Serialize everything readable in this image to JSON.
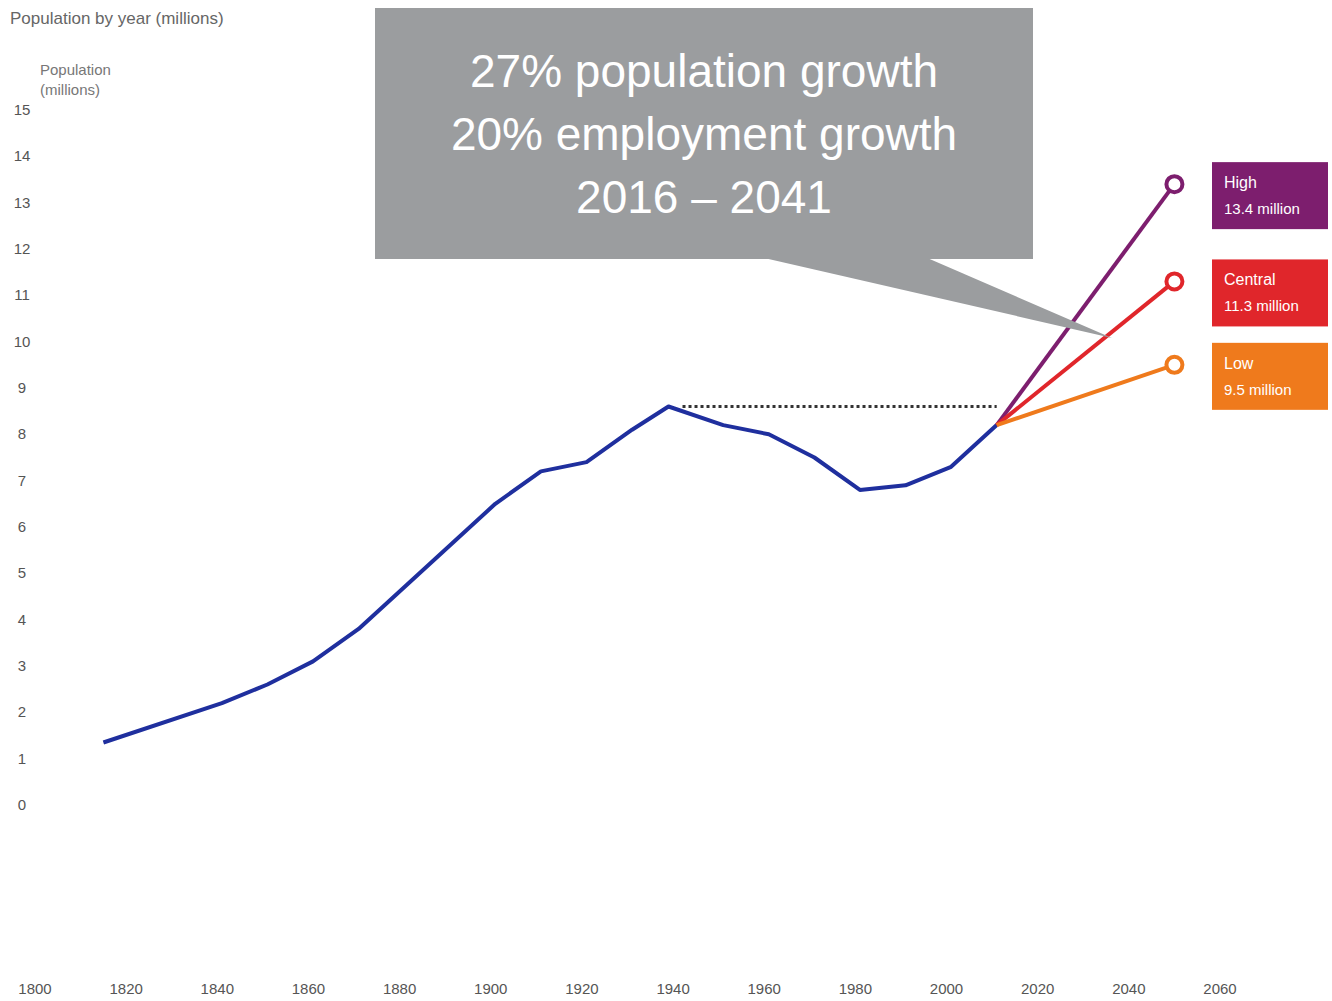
{
  "chart_data": {
    "type": "line",
    "title": "Population by year (millions)",
    "y_label": "Population (millions)",
    "x": [
      1815,
      1841,
      1851,
      1861,
      1871,
      1881,
      1891,
      1901,
      1911,
      1921,
      1931,
      1939,
      1951,
      1961,
      1971,
      1981,
      1991,
      2001,
      2011,
      2050
    ],
    "series": [
      {
        "color": "#1f2f9e",
        "values": [
          1.35,
          2.2,
          2.6,
          3.1,
          3.8,
          4.7,
          5.6,
          6.5,
          7.2,
          7.4,
          8.1,
          8.6,
          8.2,
          8.0,
          7.5,
          6.8,
          6.9,
          7.3,
          8.2,
          null
        ]
      },
      {
        "name": "High",
        "color": "#7d1e6e",
        "marker": "circle",
        "end_label": "13.4 million",
        "values": [
          null,
          null,
          null,
          null,
          null,
          null,
          null,
          null,
          null,
          null,
          null,
          null,
          null,
          null,
          null,
          null,
          null,
          null,
          8.2,
          13.4
        ]
      },
      {
        "name": "Central",
        "color": "#e0262b",
        "marker": "circle",
        "end_label": "11.3 million",
        "values": [
          null,
          null,
          null,
          null,
          null,
          null,
          null,
          null,
          null,
          null,
          null,
          null,
          null,
          null,
          null,
          null,
          null,
          null,
          8.2,
          11.3
        ]
      },
      {
        "name": "Low",
        "color": "#ef7a1c",
        "marker": "circle",
        "end_label": "9.5 million",
        "values": [
          null,
          null,
          null,
          null,
          null,
          null,
          null,
          null,
          null,
          null,
          null,
          null,
          null,
          null,
          null,
          null,
          null,
          null,
          8.2,
          9.5
        ]
      }
    ],
    "xlim": [
      1800,
      2060
    ],
    "xticks": [
      1800,
      1820,
      1840,
      1860,
      1880,
      1900,
      1920,
      1940,
      1960,
      1980,
      2000,
      2020,
      2040,
      2060
    ],
    "ylim": [
      0,
      15
    ],
    "yticks": [
      0,
      1,
      2,
      3,
      4,
      5,
      6,
      7,
      8,
      9,
      10,
      11,
      12,
      13,
      14,
      15
    ],
    "grid": false,
    "reference_line": {
      "y": 8.6,
      "x": [
        1939,
        2011
      ],
      "line_style": "dotted"
    },
    "annotation": {
      "lines": [
        "27% population growth",
        "20% employment growth",
        "2016 – 2041"
      ]
    }
  }
}
